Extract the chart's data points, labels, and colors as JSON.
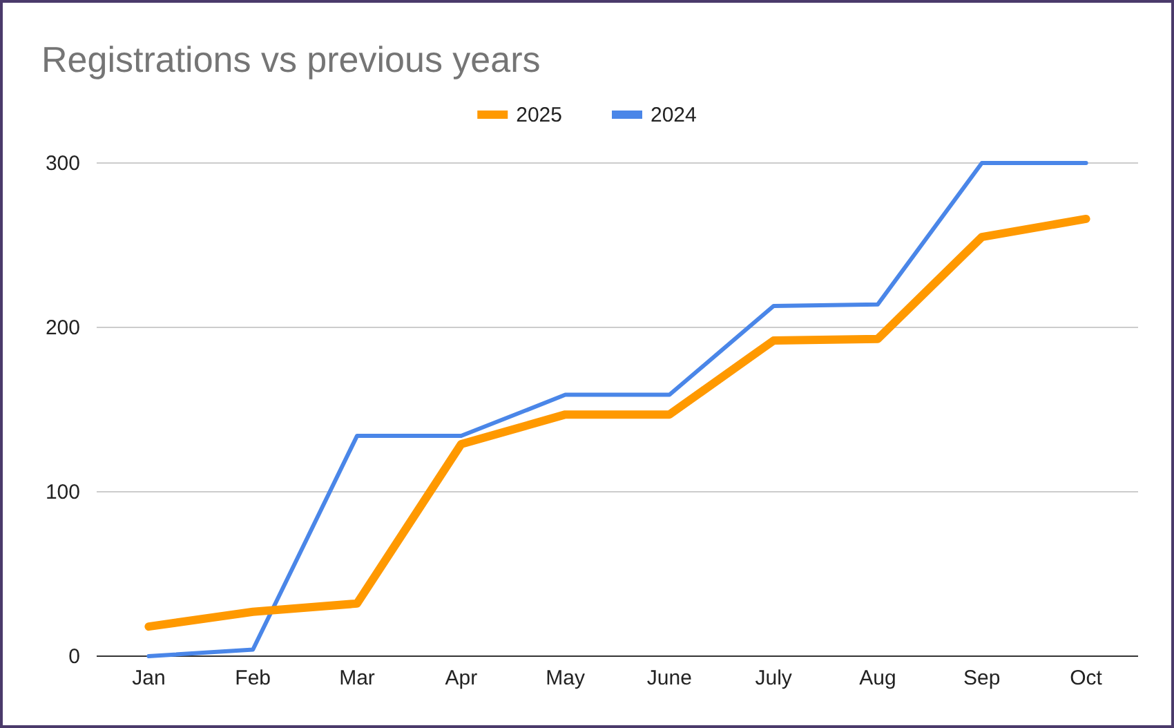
{
  "chart_data": {
    "type": "line",
    "title": "Registrations vs previous years",
    "categories": [
      "Jan",
      "Feb",
      "Mar",
      "Apr",
      "May",
      "June",
      "July",
      "Aug",
      "Sep",
      "Oct"
    ],
    "series": [
      {
        "name": "2025",
        "color": "#ff9900",
        "values": [
          18,
          27,
          32,
          129,
          147,
          147,
          192,
          193,
          255,
          266
        ]
      },
      {
        "name": "2024",
        "color": "#4a86e8",
        "values": [
          0,
          4,
          134,
          134,
          159,
          159,
          213,
          214,
          300,
          300
        ]
      }
    ],
    "ylim": [
      0,
      300
    ],
    "yticks": [
      0,
      100,
      200,
      300
    ],
    "grid": "y",
    "legend": "top",
    "marker": "none",
    "line_style": "solid"
  }
}
